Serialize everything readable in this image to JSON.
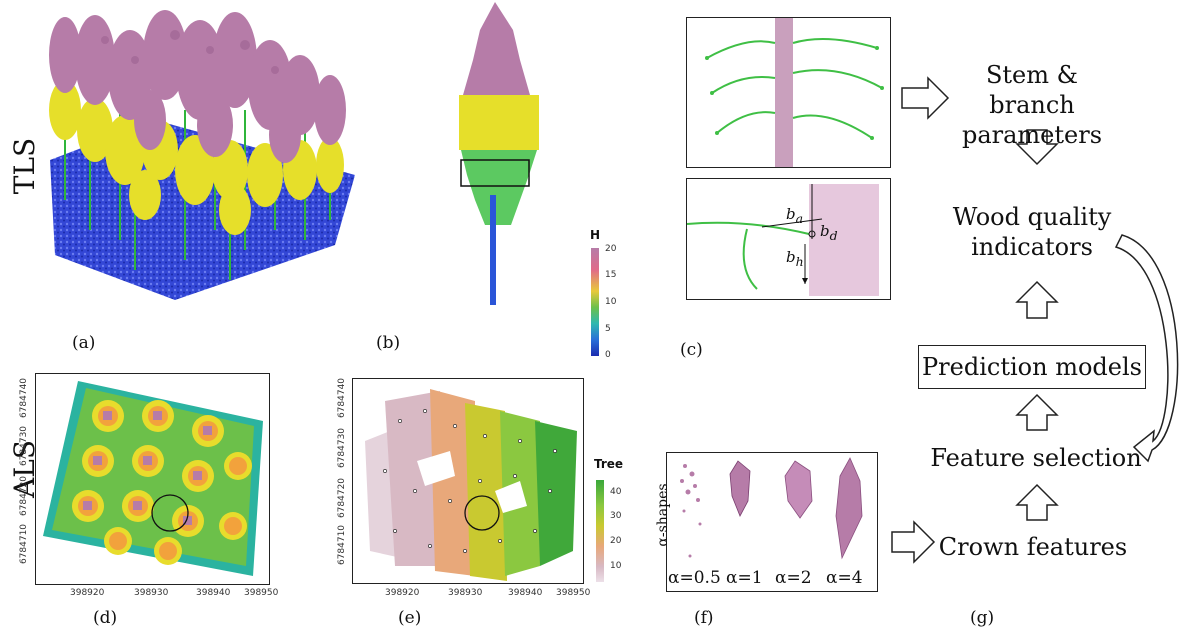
{
  "rows": {
    "tls": "TLS",
    "als": "ALS"
  },
  "panels": {
    "a": "(a)",
    "b": "(b)",
    "c": "(c)",
    "d": "(d)",
    "e": "(e)",
    "f": "(f)",
    "g": "(g)"
  },
  "legend_h": {
    "title": "H",
    "ticks": [
      "20",
      "15",
      "10",
      "5",
      "0"
    ]
  },
  "legend_tree": {
    "title": "Tree",
    "ticks": [
      "40",
      "30",
      "20",
      "10"
    ]
  },
  "map_d": {
    "y_ticks": [
      "6784740",
      "6784730",
      "6784720",
      "6784710"
    ],
    "x_ticks": [
      "398920",
      "398930",
      "398940",
      "398950"
    ]
  },
  "map_e": {
    "y_ticks": [
      "6784740",
      "6784730",
      "6784720",
      "6784710"
    ],
    "x_ticks": [
      "398920",
      "398930",
      "398940",
      "398950"
    ]
  },
  "branch_labels": {
    "ba": "b",
    "ba_sub": "a",
    "bd": "b",
    "bd_sub": "d",
    "bh": "b",
    "bh_sub": "h"
  },
  "alpha": {
    "title": "α-shapes",
    "labels": [
      "α=0.5",
      "α=1",
      "α=2",
      "α=4"
    ]
  },
  "flow": {
    "stem_line1": "Stem & branch",
    "stem_line2": "parameters",
    "wood_line1": "Wood quality",
    "wood_line2": "indicators",
    "prediction": "Prediction models",
    "feature": "Feature selection",
    "crown": "Crown features"
  },
  "colors": {
    "pink": "#b77fab",
    "yellow": "#e8e22a",
    "green": "#34b83a",
    "blue": "#2a3fd0",
    "frame": "#222222"
  }
}
